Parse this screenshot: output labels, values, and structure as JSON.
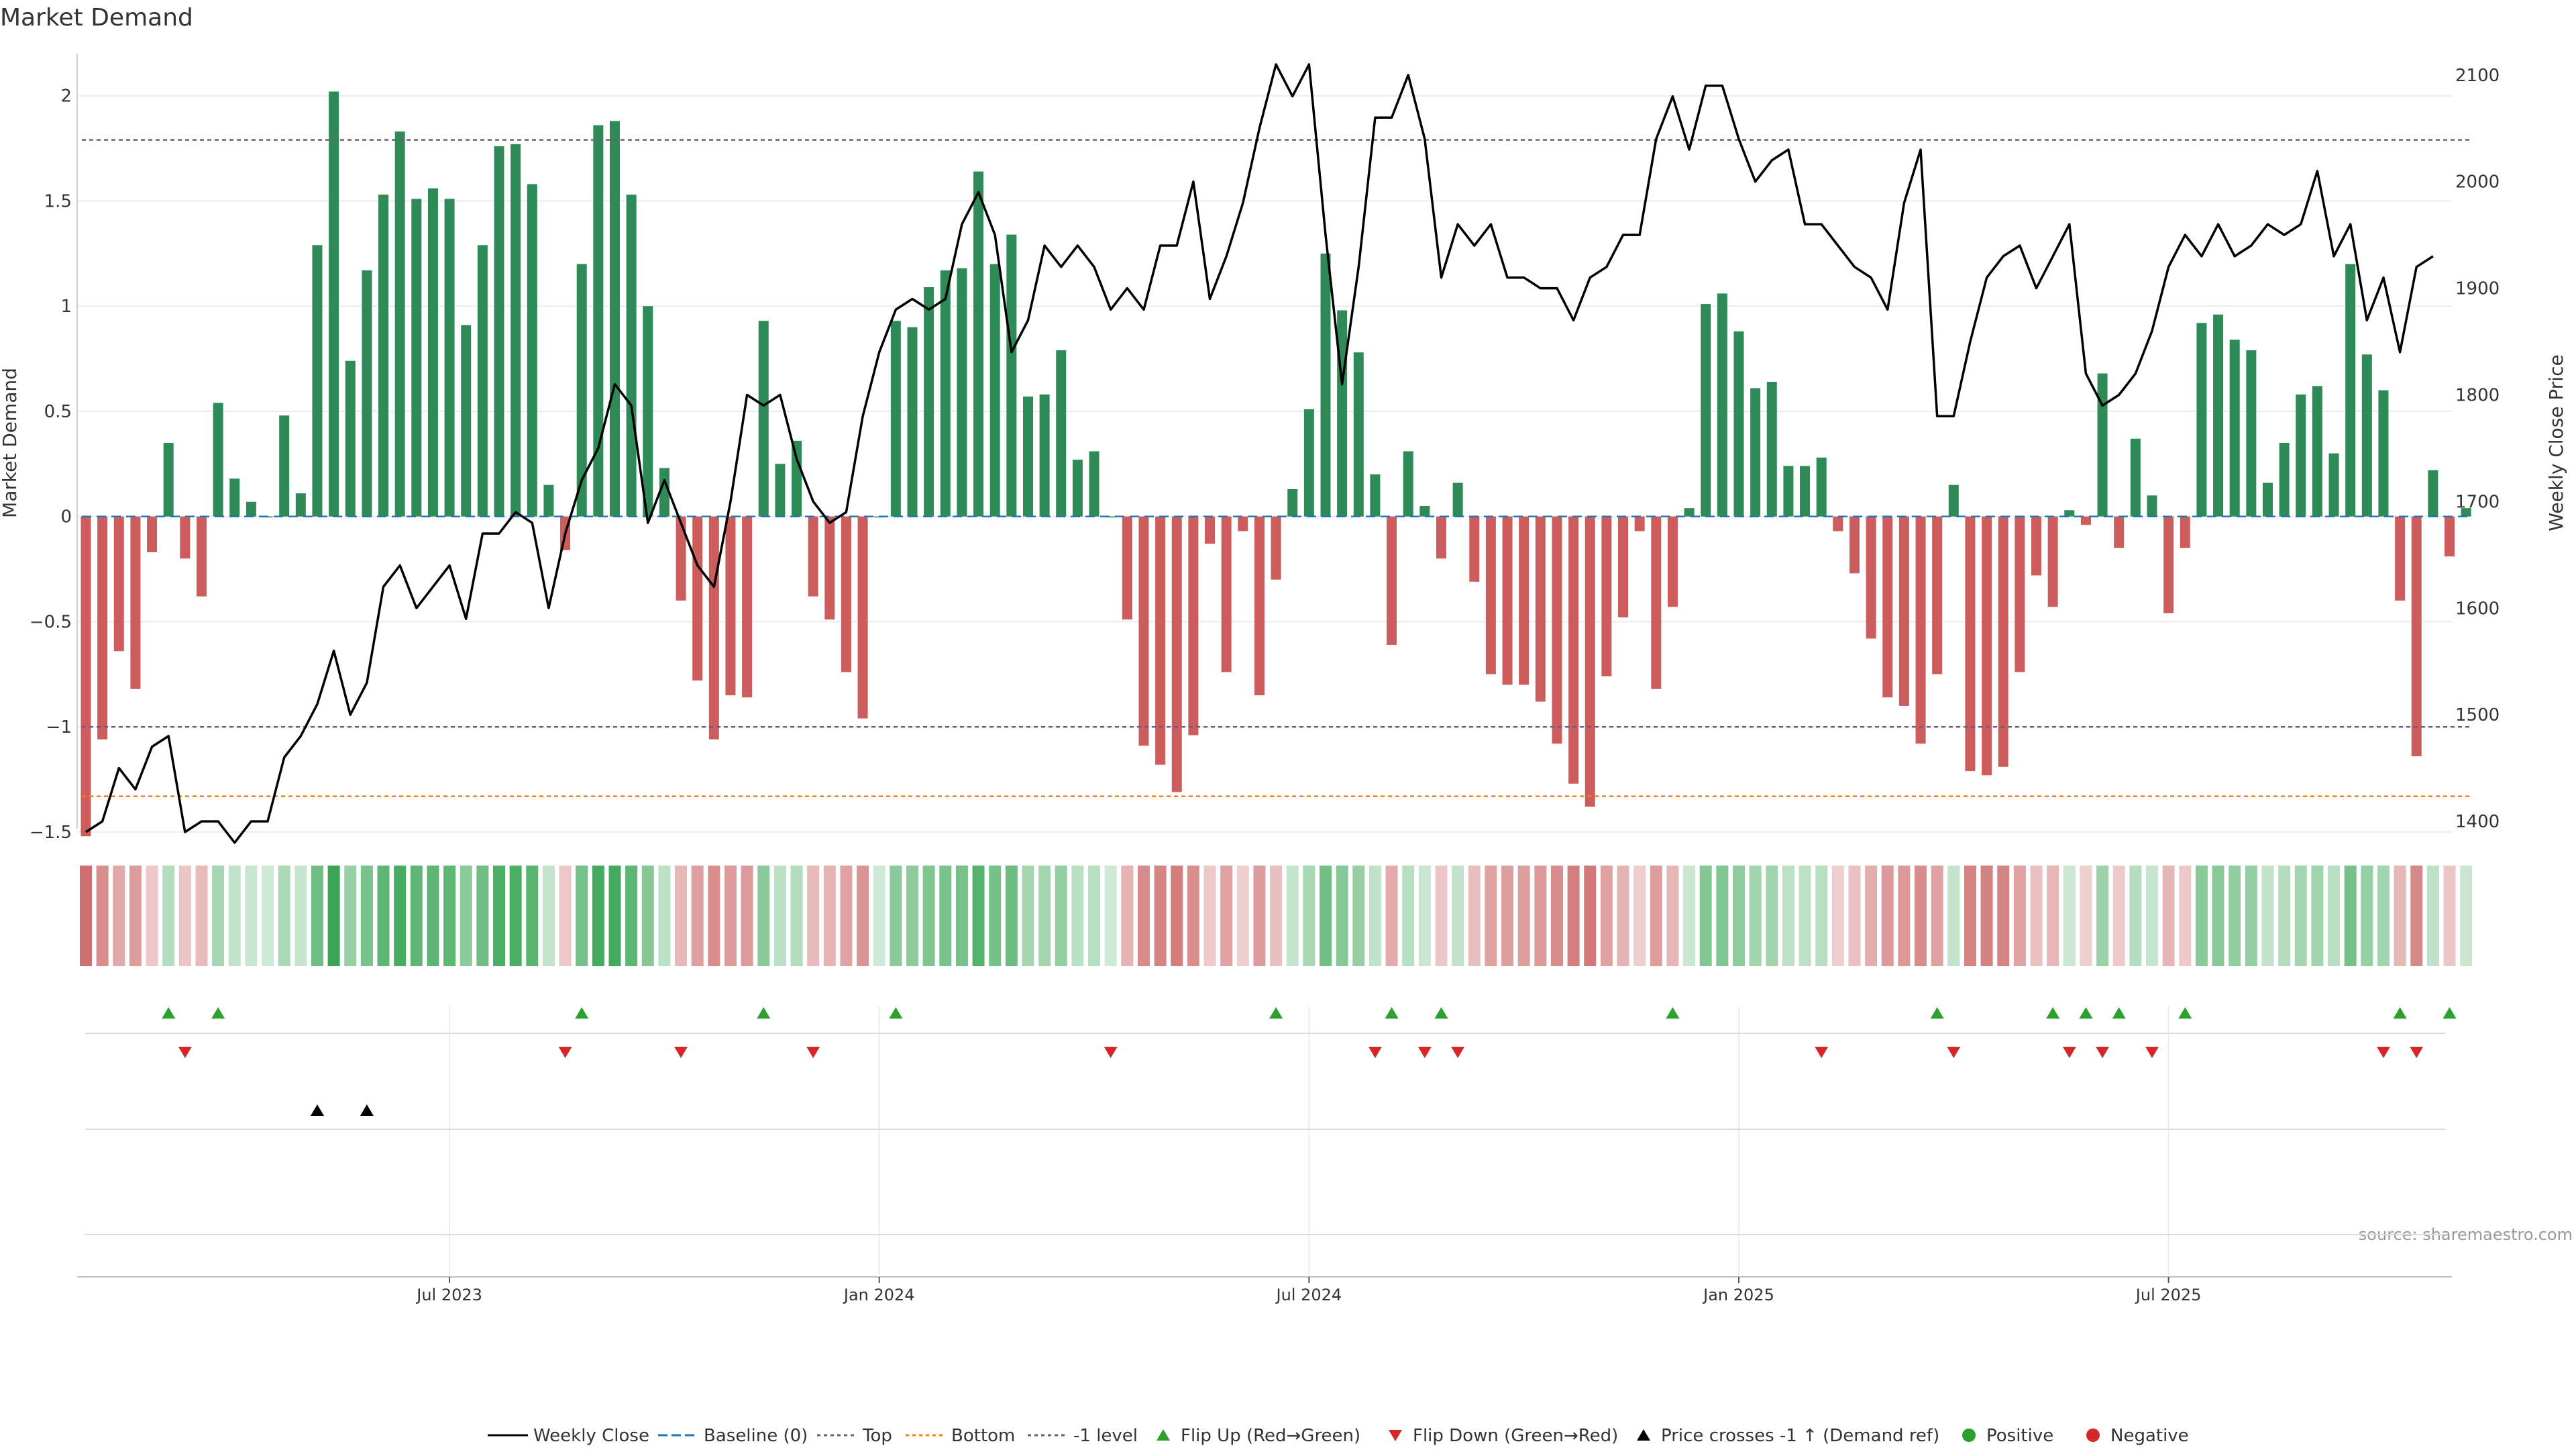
{
  "chart_data": {
    "type": "bar",
    "title": "Market Demand",
    "ylabel_left": "Market Demand",
    "ylabel_right": "Weekly Close Price",
    "source": "source: sharemaestro.com",
    "ylim_left": [
      -1.5,
      2.2
    ],
    "ylim_right": [
      1390,
      2120
    ],
    "yticks_left": [
      -1.5,
      -1,
      -0.5,
      0,
      0.5,
      1,
      1.5,
      2
    ],
    "ytick_labels_left": [
      "−1.5",
      "−1",
      "−0.5",
      "0",
      "0.5",
      "1",
      "1.5",
      "2"
    ],
    "yticks_right": [
      1400,
      1500,
      1600,
      1700,
      1800,
      1900,
      2000,
      2100
    ],
    "ytick_labels_right": [
      "1400",
      "1500",
      "1600",
      "1700",
      "1800",
      "1900",
      "2000",
      "2100"
    ],
    "xticks": [
      22,
      48,
      74,
      100,
      126
    ],
    "xtick_labels": [
      "Jul 2023",
      "Jan 2024",
      "Jul 2024",
      "Jan 2025",
      "Jul 2025"
    ],
    "reference_lines": {
      "top": 1.79,
      "bottom": -1.33,
      "minus_one": -1.0,
      "baseline": 0
    },
    "colors": {
      "positive": "#2e8b57",
      "negative": "#cd5c5c",
      "price": "#000000",
      "flip_up": "#2ca02c",
      "flip_down": "#d62728",
      "cross": "#000000",
      "top": "#6c5b7b",
      "bottom": "#ff7f0e",
      "baseline": "#1f77b4"
    },
    "demand": [
      -1.52,
      -1.06,
      -0.64,
      -0.82,
      -0.17,
      0.35,
      -0.2,
      -0.38,
      0.54,
      0.18,
      0.07,
      0.0,
      0.48,
      0.11,
      1.29,
      2.02,
      0.74,
      1.17,
      1.53,
      1.83,
      1.51,
      1.56,
      1.51,
      0.91,
      1.29,
      1.76,
      1.77,
      1.58,
      0.15,
      -0.16,
      1.2,
      1.86,
      1.88,
      1.53,
      1.0,
      0.23,
      -0.4,
      -0.78,
      -1.06,
      -0.85,
      -0.86,
      0.93,
      0.25,
      0.36,
      -0.38,
      -0.49,
      -0.74,
      -0.96,
      0.0,
      0.93,
      0.9,
      1.09,
      1.17,
      1.18,
      1.64,
      1.2,
      1.34,
      0.57,
      0.58,
      0.79,
      0.27,
      0.31,
      0.0,
      -0.49,
      -1.09,
      -1.18,
      -1.31,
      -1.04,
      -0.13,
      -0.74,
      -0.07,
      -0.85,
      -0.3,
      0.13,
      0.51,
      1.25,
      0.98,
      0.78,
      0.2,
      -0.61,
      0.31,
      0.05,
      -0.2,
      0.16,
      -0.31,
      -0.75,
      -0.8,
      -0.8,
      -0.88,
      -1.08,
      -1.27,
      -1.38,
      -0.76,
      -0.48,
      -0.07,
      -0.82,
      -0.43,
      0.04,
      1.01,
      1.06,
      0.88,
      0.61,
      0.64,
      0.24,
      0.24,
      0.28,
      -0.07,
      -0.27,
      -0.58,
      -0.86,
      -0.9,
      -1.08,
      -0.75,
      0.15,
      -1.21,
      -1.23,
      -1.19,
      -0.74,
      -0.28,
      -0.43,
      0.03,
      -0.04,
      0.68,
      -0.15,
      0.37,
      0.1,
      -0.46,
      -0.15,
      0.92,
      0.96,
      0.84,
      0.79,
      0.16,
      0.35,
      0.58,
      0.62,
      0.3,
      1.2,
      0.77,
      0.6,
      -0.4,
      -1.14,
      0.22,
      -0.19,
      0.04
    ],
    "weekly_close": [
      1390,
      1400,
      1450,
      1430,
      1470,
      1480,
      1390,
      1400,
      1400,
      1380,
      1400,
      1400,
      1460,
      1480,
      1510,
      1560,
      1500,
      1530,
      1620,
      1640,
      1600,
      1620,
      1640,
      1590,
      1670,
      1670,
      1690,
      1680,
      1600,
      1670,
      1720,
      1750,
      1810,
      1790,
      1680,
      1720,
      1680,
      1640,
      1620,
      1700,
      1800,
      1790,
      1800,
      1740,
      1700,
      1680,
      1690,
      1780,
      1840,
      1880,
      1890,
      1880,
      1890,
      1960,
      1990,
      1950,
      1840,
      1870,
      1940,
      1920,
      1940,
      1920,
      1880,
      1900,
      1880,
      1940,
      1940,
      2000,
      1890,
      1930,
      1980,
      2050,
      2110,
      2080,
      2110,
      1950,
      1810,
      1920,
      2060,
      2060,
      2100,
      2040,
      1910,
      1960,
      1940,
      1960,
      1910,
      1910,
      1900,
      1900,
      1870,
      1910,
      1920,
      1950,
      1950,
      2040,
      2080,
      2030,
      2090,
      2090,
      2040,
      2000,
      2020,
      2030,
      1960,
      1960,
      1940,
      1920,
      1910,
      1880,
      1980,
      2030,
      1780,
      1780,
      1850,
      1910,
      1930,
      1940,
      1900,
      1930,
      1960,
      1820,
      1790,
      1800,
      1820,
      1860,
      1920,
      1950,
      1930,
      1960,
      1930,
      1940,
      1960,
      1950,
      1960,
      2010,
      1930,
      1960,
      1870,
      1910,
      1840,
      1920,
      1930
    ],
    "flip_up": [
      5,
      8,
      30,
      41,
      49,
      72,
      79,
      82,
      96,
      112,
      119,
      121,
      123,
      127,
      140,
      143
    ],
    "flip_down": [
      6,
      29,
      36,
      44,
      62,
      78,
      81,
      83,
      105,
      113,
      120,
      122,
      125,
      139,
      141
    ],
    "price_cross": [
      14,
      17
    ],
    "legend": [
      "Weekly Close",
      "Baseline (0)",
      "Top",
      "Bottom",
      "-1 level",
      "Flip Up (Red→Green)",
      "Flip Down (Green→Red)",
      "Price crosses -1 ↑ (Demand ref)",
      "Positive",
      "Negative"
    ]
  }
}
